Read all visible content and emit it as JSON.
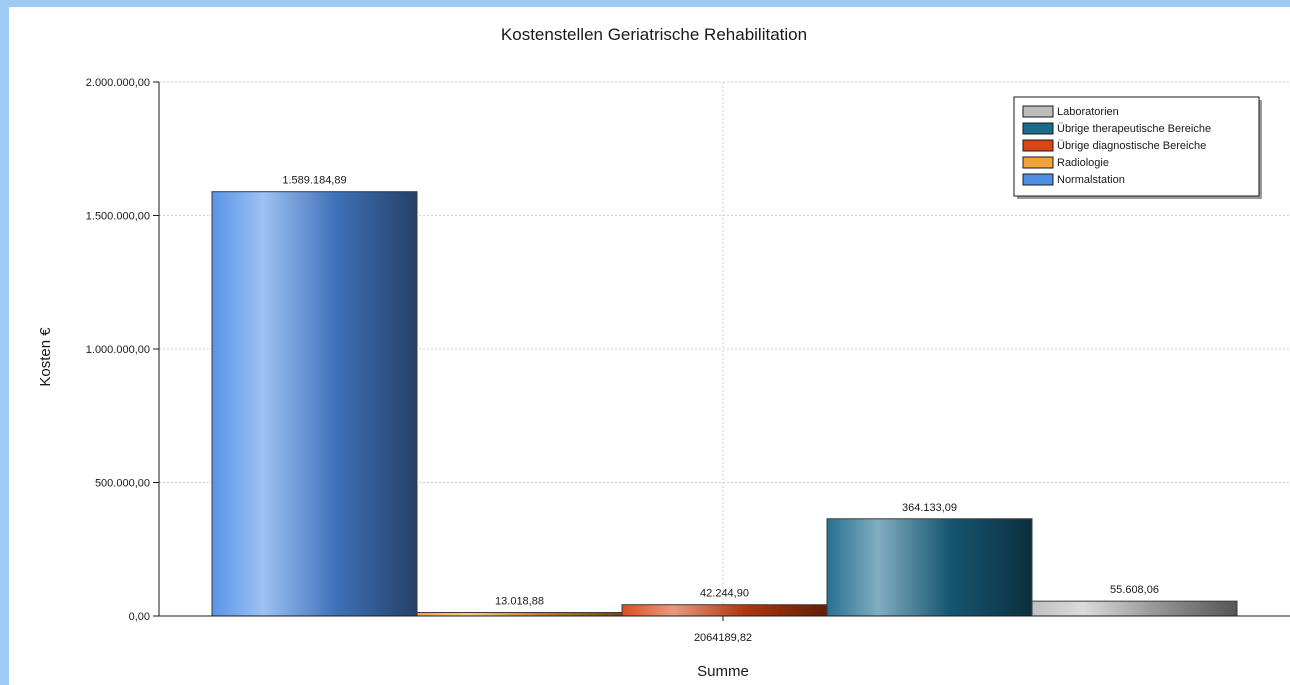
{
  "chart_data": {
    "type": "bar",
    "title": "Kostenstellen Geriatrische Rehabilitation",
    "xlabel": "Summe",
    "ylabel": "Kosten €",
    "ylim": [
      0,
      2000000
    ],
    "yticks": [
      "0,00",
      "500.000,00",
      "1.000.000,00",
      "1.500.000,00",
      "2.000.000,00"
    ],
    "category": "2064189,82",
    "grid": true,
    "legend_position": "top-right",
    "series": [
      {
        "name": "Normalstation",
        "value": 1589184.89,
        "label": "1.589.184,89",
        "color": "#4f8fe8"
      },
      {
        "name": "Radiologie",
        "value": 13018.88,
        "label": "13.018,88",
        "color": "#f2a238"
      },
      {
        "name": "Übrige diagnostische Bereiche",
        "value": 42244.9,
        "label": "42.244,90",
        "color": "#d94514"
      },
      {
        "name": "Übrige therapeutische Bereiche",
        "value": 364133.09,
        "label": "364.133,09",
        "color": "#1b6a8c"
      },
      {
        "name": "Laboratorien",
        "value": 55608.06,
        "label": "55.608,06",
        "color": "#bdbdbd"
      }
    ],
    "legend_order": [
      "Laboratorien",
      "Übrige therapeutische Bereiche",
      "Übrige diagnostische Bereiche",
      "Radiologie",
      "Normalstation"
    ]
  }
}
